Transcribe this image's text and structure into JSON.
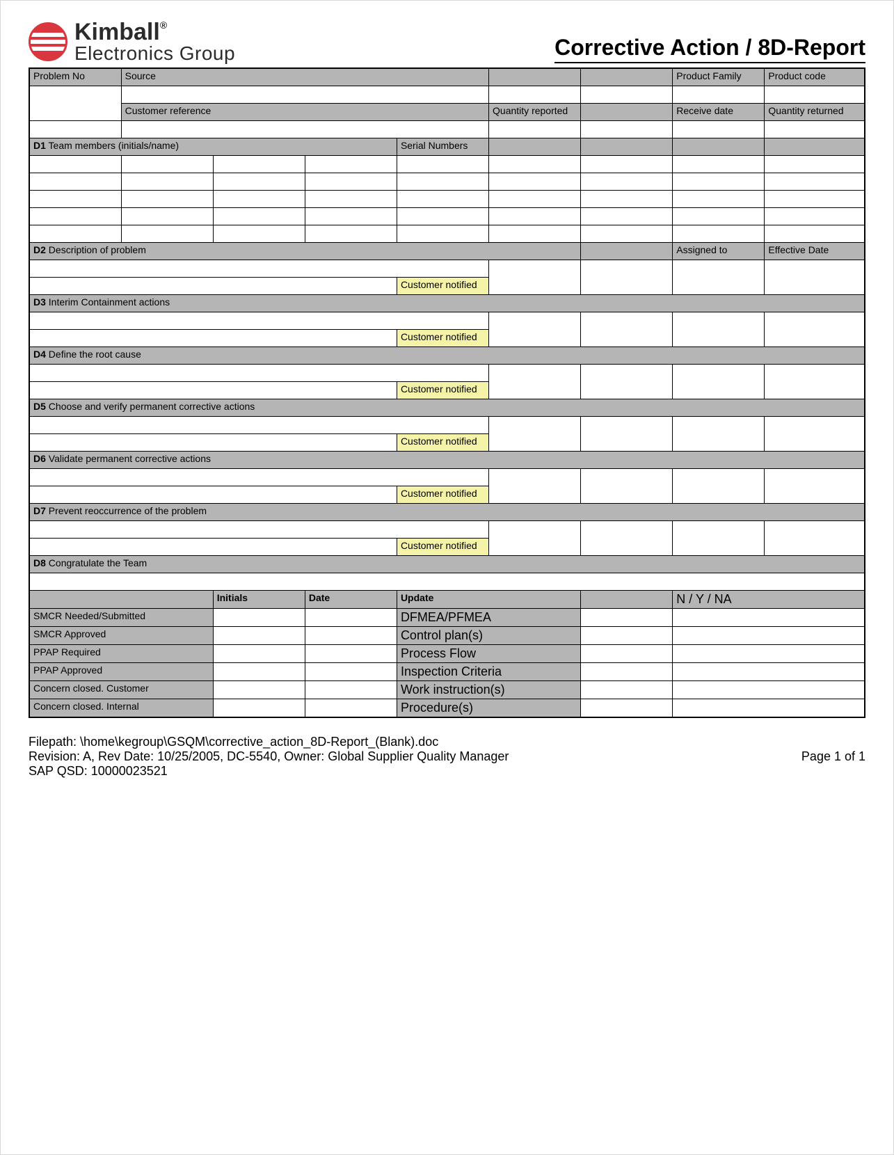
{
  "logo": {
    "line1": "Kimball",
    "reg": "®",
    "line2": "Electronics Group"
  },
  "title": "Corrective Action / 8D-Report",
  "row1": {
    "problem_no": "Problem No",
    "source": "Source",
    "product_family": "Product Family",
    "product_code": "Product code"
  },
  "row2": {
    "customer_reference": "Customer reference",
    "quantity_reported": "Quantity reported",
    "receive_date": "Receive date",
    "quantity_returned": "Quantity returned"
  },
  "d1": {
    "prefix": "D1",
    "label": "Team members (initials/name)",
    "serial": "Serial Numbers"
  },
  "d2": {
    "prefix": "D2",
    "label": "Description of problem",
    "assigned": "Assigned to",
    "effective": "Effective Date"
  },
  "d3": {
    "prefix": "D3",
    "label": "Interim Containment actions"
  },
  "d4": {
    "prefix": "D4",
    "label": "Define the root cause"
  },
  "d5": {
    "prefix": "D5",
    "label": "Choose and verify permanent corrective actions"
  },
  "d6": {
    "prefix": "D6",
    "label": "Validate permanent corrective actions"
  },
  "d7": {
    "prefix": "D7",
    "label": "Prevent  reoccurrence of the problem"
  },
  "d8": {
    "prefix": "D8",
    "label": "Congratulate the Team"
  },
  "notify": "Customer notified",
  "signoff": {
    "headers": {
      "initials": "Initials",
      "date": "Date",
      "update": "Update",
      "nyna": "N / Y / NA"
    },
    "left_rows": [
      "SMCR Needed/Submitted",
      "SMCR Approved",
      "PPAP Required",
      "PPAP Approved",
      "Concern closed. Customer",
      "Concern closed. Internal"
    ],
    "right_rows": [
      "DFMEA/PFMEA",
      "Control plan(s)",
      "Process Flow",
      "Inspection Criteria",
      "Work instruction(s)",
      "Procedure(s)"
    ]
  },
  "footer": {
    "filepath": "Filepath: \\home\\kegroup\\GSQM\\corrective_action_8D-Report_(Blank).doc",
    "revision": "Revision: A, Rev Date:  10/25/2005, DC-5540, Owner:  Global Supplier Quality Manager",
    "sap": "SAP QSD: 10000023521",
    "page": "Page 1 of 1"
  },
  "colors": {
    "header_bg": "#b5b5b5",
    "notify_bg": "#f5f3a8",
    "border": "#000000",
    "logo_red": "#d9363e",
    "page_bg": "#ffffff"
  }
}
